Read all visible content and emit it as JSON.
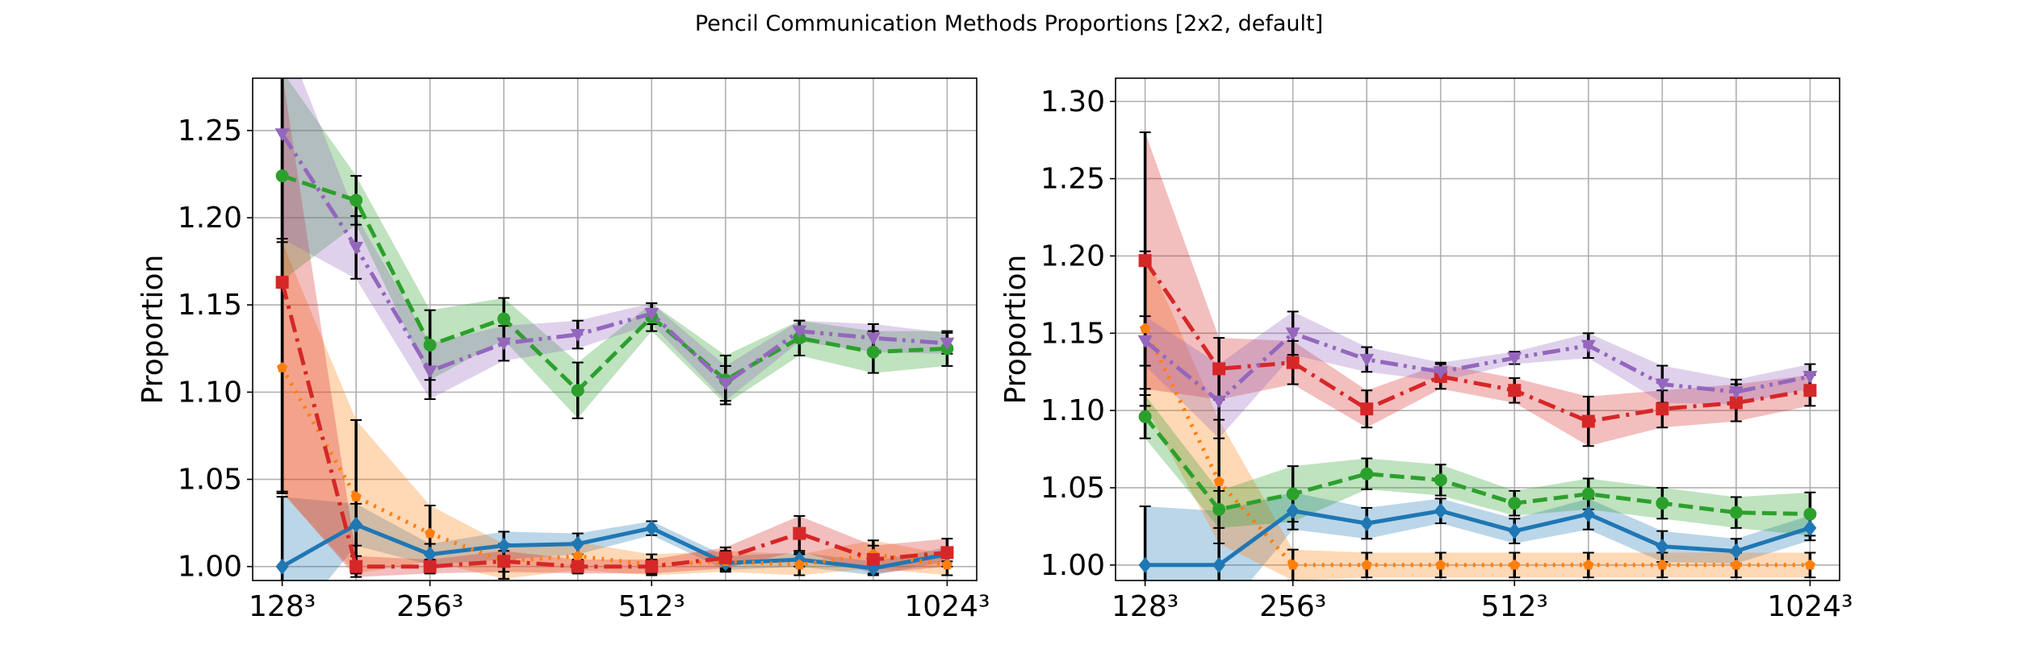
{
  "figure": {
    "suptitle": "Pencil Communication Methods Proportions [2x2, default]"
  },
  "chart_data": [
    {
      "type": "line",
      "ylabel": "Proportion",
      "xlabel": "",
      "x_tick_labels": [
        "128³",
        "256³",
        "512³",
        "1024³"
      ],
      "x_tick_positions": [
        0,
        2,
        5,
        9
      ],
      "y_ticks": [
        "1.00",
        "1.05",
        "1.10",
        "1.15",
        "1.20",
        "1.25"
      ],
      "xlim": [
        -0.4,
        9.4
      ],
      "ylim": [
        0.992,
        1.28
      ],
      "grid": true,
      "x": [
        0,
        1,
        2,
        3,
        4,
        5,
        6,
        7,
        8,
        9
      ],
      "series": [
        {
          "color": "#1f77b4",
          "linestyle": "solid",
          "marker": "diamond",
          "values": [
            1.0,
            1.024,
            1.007,
            1.012,
            1.013,
            1.022,
            1.002,
            1.004,
            0.999,
            1.007
          ],
          "err": [
            0.04,
            0.012,
            0.006,
            0.008,
            0.006,
            0.004,
            0.004,
            0.004,
            0.004,
            0.004
          ]
        },
        {
          "color": "#ff7f0e",
          "linestyle": "dotted",
          "marker": "pentagon",
          "values": [
            1.114,
            1.04,
            1.019,
            1.003,
            1.006,
            1.001,
            1.003,
            1.001,
            1.007,
            1.001
          ],
          "err": [
            0.072,
            0.044,
            0.016,
            0.01,
            0.008,
            0.006,
            0.006,
            0.006,
            0.008,
            0.006
          ]
        },
        {
          "color": "#2ca02c",
          "linestyle": "dashed",
          "marker": "circle",
          "values": [
            1.224,
            1.21,
            1.127,
            1.142,
            1.101,
            1.143,
            1.107,
            1.131,
            1.123,
            1.125
          ],
          "err": [
            0.06,
            0.014,
            0.02,
            0.012,
            0.016,
            0.008,
            0.014,
            0.01,
            0.012,
            0.01
          ]
        },
        {
          "color": "#d62728",
          "linestyle": "dashdot",
          "marker": "square",
          "values": [
            1.163,
            1.0,
            1.0,
            1.003,
            1.0,
            1.0,
            1.005,
            1.019,
            1.004,
            1.008
          ],
          "err": [
            0.12,
            0.006,
            0.004,
            0.006,
            0.004,
            0.004,
            0.006,
            0.01,
            0.008,
            0.008
          ]
        },
        {
          "color": "#9467bd",
          "linestyle": "dashdotdot",
          "marker": "triangle-down",
          "values": [
            1.248,
            1.183,
            1.112,
            1.128,
            1.133,
            1.145,
            1.105,
            1.135,
            1.131,
            1.128
          ],
          "err": [
            0.06,
            0.018,
            0.016,
            0.01,
            0.008,
            0.006,
            0.01,
            0.006,
            0.008,
            0.006
          ]
        }
      ]
    },
    {
      "type": "line",
      "ylabel": "Proportion",
      "xlabel": "",
      "x_tick_labels": [
        "128³",
        "256³",
        "512³",
        "1024³"
      ],
      "x_tick_positions": [
        0,
        2,
        5,
        9
      ],
      "y_ticks": [
        "1.00",
        "1.05",
        "1.10",
        "1.15",
        "1.20",
        "1.25",
        "1.30"
      ],
      "xlim": [
        -0.4,
        9.4
      ],
      "ylim": [
        0.99,
        1.315
      ],
      "grid": true,
      "x": [
        0,
        1,
        2,
        3,
        4,
        5,
        6,
        7,
        8,
        9
      ],
      "series": [
        {
          "color": "#1f77b4",
          "linestyle": "solid",
          "marker": "diamond",
          "values": [
            1.0,
            1.0,
            1.035,
            1.027,
            1.035,
            1.022,
            1.033,
            1.012,
            1.009,
            1.024
          ],
          "err": [
            0.038,
            0.035,
            0.012,
            0.01,
            0.008,
            0.008,
            0.01,
            0.01,
            0.008,
            0.008
          ]
        },
        {
          "color": "#ff7f0e",
          "linestyle": "dotted",
          "marker": "pentagon",
          "values": [
            1.153,
            1.054,
            1.0,
            1.0,
            1.0,
            1.0,
            1.0,
            1.0,
            1.0,
            1.0
          ],
          "err": [
            0.05,
            0.04,
            0.01,
            0.008,
            0.008,
            0.008,
            0.008,
            0.008,
            0.008,
            0.008
          ]
        },
        {
          "color": "#2ca02c",
          "linestyle": "dashed",
          "marker": "circle",
          "values": [
            1.096,
            1.036,
            1.046,
            1.059,
            1.055,
            1.04,
            1.046,
            1.04,
            1.034,
            1.033
          ],
          "err": [
            0.014,
            0.012,
            0.018,
            0.01,
            0.01,
            0.008,
            0.01,
            0.01,
            0.01,
            0.014
          ]
        },
        {
          "color": "#d62728",
          "linestyle": "dashdot",
          "marker": "square",
          "values": [
            1.197,
            1.127,
            1.131,
            1.101,
            1.122,
            1.113,
            1.093,
            1.101,
            1.105,
            1.113
          ],
          "err": [
            0.083,
            0.02,
            0.014,
            0.012,
            0.008,
            0.008,
            0.016,
            0.012,
            0.012,
            0.01
          ]
        },
        {
          "color": "#9467bd",
          "linestyle": "dashdotdot",
          "marker": "triangle-down",
          "values": [
            1.145,
            1.106,
            1.15,
            1.133,
            1.125,
            1.134,
            1.142,
            1.117,
            1.112,
            1.122
          ],
          "err": [
            0.016,
            0.024,
            0.014,
            0.008,
            0.006,
            0.004,
            0.008,
            0.012,
            0.008,
            0.008
          ]
        }
      ]
    }
  ]
}
